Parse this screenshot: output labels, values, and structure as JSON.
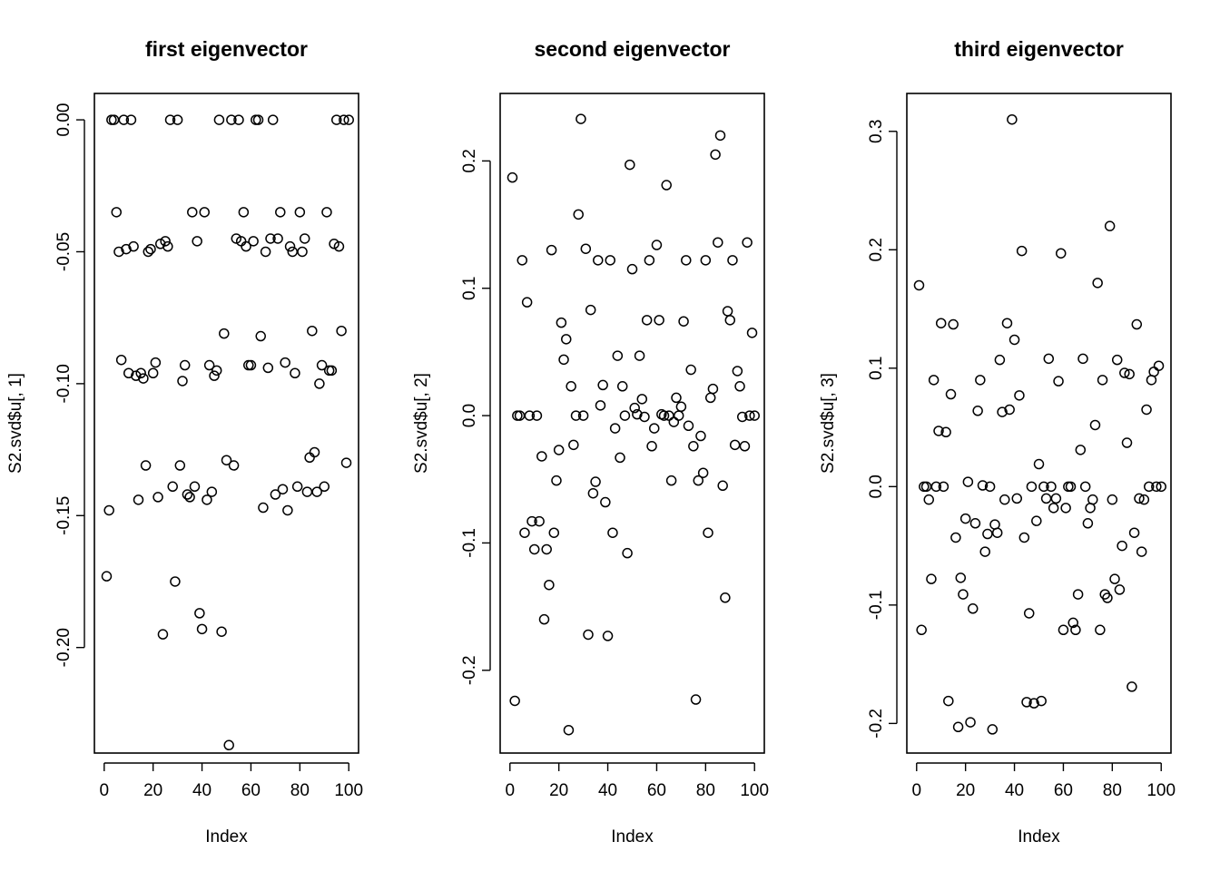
{
  "chart_data": [
    {
      "type": "scatter",
      "title": "first eigenvector",
      "xlabel": "Index",
      "ylabel": "S2.svd$u[, 1]",
      "xlim": [
        0,
        100
      ],
      "ylim": [
        -0.24,
        0.01
      ],
      "xticks": [
        0,
        20,
        40,
        60,
        80,
        100
      ],
      "xtick_labels": [
        "0",
        "20",
        "40",
        "60",
        "80",
        "100"
      ],
      "yticks": [
        -0.2,
        -0.15,
        -0.1,
        -0.05,
        0.0
      ],
      "ytick_labels": [
        "-0.20",
        "-0.15",
        "-0.10",
        "-0.05",
        "0.00"
      ],
      "x": [
        1,
        2,
        3,
        4,
        5,
        6,
        7,
        8,
        9,
        10,
        11,
        12,
        13,
        14,
        15,
        16,
        17,
        18,
        19,
        20,
        21,
        22,
        23,
        24,
        25,
        26,
        27,
        28,
        29,
        30,
        31,
        32,
        33,
        34,
        35,
        36,
        37,
        38,
        39,
        40,
        41,
        42,
        43,
        44,
        45,
        46,
        47,
        48,
        49,
        50,
        51,
        52,
        53,
        54,
        55,
        56,
        57,
        58,
        59,
        60,
        61,
        62,
        63,
        64,
        65,
        66,
        67,
        68,
        69,
        70,
        71,
        72,
        73,
        74,
        75,
        76,
        77,
        78,
        79,
        80,
        81,
        82,
        83,
        84,
        85,
        86,
        87,
        88,
        89,
        90,
        91,
        92,
        93,
        94,
        95,
        96,
        97,
        98,
        99,
        100
      ],
      "y": [
        -0.173,
        -0.148,
        0.0,
        0.0,
        -0.035,
        -0.05,
        -0.091,
        0.0,
        -0.049,
        -0.096,
        0.0,
        -0.048,
        -0.097,
        -0.144,
        -0.096,
        -0.098,
        -0.131,
        -0.05,
        -0.049,
        -0.096,
        -0.092,
        -0.143,
        -0.047,
        -0.195,
        -0.046,
        -0.048,
        0.0,
        -0.139,
        -0.175,
        0.0,
        -0.131,
        -0.099,
        -0.093,
        -0.142,
        -0.143,
        -0.035,
        -0.139,
        -0.046,
        -0.187,
        -0.193,
        -0.035,
        -0.144,
        -0.093,
        -0.141,
        -0.097,
        -0.095,
        0.0,
        -0.194,
        -0.081,
        -0.129,
        -0.237,
        0.0,
        -0.131,
        -0.045,
        0.0,
        -0.046,
        -0.035,
        -0.048,
        -0.093,
        -0.093,
        -0.046,
        0.0,
        0.0,
        -0.082,
        -0.147,
        -0.05,
        -0.094,
        -0.045,
        0.0,
        -0.142,
        -0.045,
        -0.035,
        -0.14,
        -0.092,
        -0.148,
        -0.048,
        -0.05,
        -0.096,
        -0.139,
        -0.035,
        -0.05,
        -0.045,
        -0.141,
        -0.128,
        -0.08,
        -0.126,
        -0.141,
        -0.1,
        -0.093,
        -0.139,
        -0.035,
        -0.095,
        -0.095,
        -0.047,
        0.0,
        -0.048,
        -0.08,
        0.0,
        -0.13,
        0.0
      ]
    },
    {
      "type": "scatter",
      "title": "second eigenvector",
      "xlabel": "Index",
      "ylabel": "S2.svd$u[, 2]",
      "xlim": [
        0,
        100
      ],
      "ylim": [
        -0.265,
        0.253
      ],
      "xticks": [
        0,
        20,
        40,
        60,
        80,
        100
      ],
      "xtick_labels": [
        "0",
        "20",
        "40",
        "60",
        "80",
        "100"
      ],
      "yticks": [
        -0.2,
        -0.1,
        0.0,
        0.1,
        0.2
      ],
      "ytick_labels": [
        "-0.2",
        "-0.1",
        "0.0",
        "0.1",
        "0.2"
      ],
      "x": [
        1,
        2,
        3,
        4,
        5,
        6,
        7,
        8,
        9,
        10,
        11,
        12,
        13,
        14,
        15,
        16,
        17,
        18,
        19,
        20,
        21,
        22,
        23,
        24,
        25,
        26,
        27,
        28,
        29,
        30,
        31,
        32,
        33,
        34,
        35,
        36,
        37,
        38,
        39,
        40,
        41,
        42,
        43,
        44,
        45,
        46,
        47,
        48,
        49,
        50,
        51,
        52,
        53,
        54,
        55,
        56,
        57,
        58,
        59,
        60,
        61,
        62,
        63,
        64,
        65,
        66,
        67,
        68,
        69,
        70,
        71,
        72,
        73,
        74,
        75,
        76,
        77,
        78,
        79,
        80,
        81,
        82,
        83,
        84,
        85,
        86,
        87,
        88,
        89,
        90,
        91,
        92,
        93,
        94,
        95,
        96,
        97,
        98,
        99,
        100
      ],
      "y": [
        0.187,
        -0.224,
        0.0,
        0.0,
        0.122,
        -0.092,
        0.089,
        0.0,
        -0.083,
        -0.105,
        0.0,
        -0.083,
        -0.032,
        -0.16,
        -0.105,
        -0.133,
        0.13,
        -0.092,
        -0.051,
        -0.027,
        0.073,
        0.044,
        0.06,
        -0.247,
        0.023,
        -0.023,
        0.0,
        0.158,
        0.233,
        0.0,
        0.131,
        -0.172,
        0.083,
        -0.061,
        -0.052,
        0.122,
        0.008,
        0.024,
        -0.068,
        -0.173,
        0.122,
        -0.092,
        -0.01,
        0.047,
        -0.033,
        0.023,
        0.0,
        -0.108,
        0.197,
        0.115,
        0.006,
        0.001,
        0.047,
        0.013,
        -0.001,
        0.075,
        0.122,
        -0.024,
        -0.01,
        0.134,
        0.075,
        0.001,
        0.0,
        0.181,
        0.0,
        -0.051,
        -0.005,
        0.014,
        0.0,
        0.007,
        0.074,
        0.122,
        -0.008,
        0.036,
        -0.024,
        -0.223,
        -0.051,
        -0.016,
        -0.045,
        0.122,
        -0.092,
        0.014,
        0.021,
        0.205,
        0.136,
        0.22,
        -0.055,
        -0.143,
        0.082,
        0.075,
        0.122,
        -0.023,
        0.035,
        0.023,
        -0.001,
        -0.024,
        0.136,
        0.0,
        0.065,
        0.0
      ]
    },
    {
      "type": "scatter",
      "title": "third eigenvector",
      "xlabel": "Index",
      "ylabel": "S2.svd$u[, 3]",
      "xlim": [
        0,
        100
      ],
      "ylim": [
        -0.225,
        0.332
      ],
      "xticks": [
        0,
        20,
        40,
        60,
        80,
        100
      ],
      "xtick_labels": [
        "0",
        "20",
        "40",
        "60",
        "80",
        "100"
      ],
      "yticks": [
        -0.2,
        -0.1,
        0.0,
        0.1,
        0.2,
        0.3
      ],
      "ytick_labels": [
        "-0.2",
        "-0.1",
        "0.0",
        "0.1",
        "0.2",
        "0.3"
      ],
      "x": [
        1,
        2,
        3,
        4,
        5,
        6,
        7,
        8,
        9,
        10,
        11,
        12,
        13,
        14,
        15,
        16,
        17,
        18,
        19,
        20,
        21,
        22,
        23,
        24,
        25,
        26,
        27,
        28,
        29,
        30,
        31,
        32,
        33,
        34,
        35,
        36,
        37,
        38,
        39,
        40,
        41,
        42,
        43,
        44,
        45,
        46,
        47,
        48,
        49,
        50,
        51,
        52,
        53,
        54,
        55,
        56,
        57,
        58,
        59,
        60,
        61,
        62,
        63,
        64,
        65,
        66,
        67,
        68,
        69,
        70,
        71,
        72,
        73,
        74,
        75,
        76,
        77,
        78,
        79,
        80,
        81,
        82,
        83,
        84,
        85,
        86,
        87,
        88,
        89,
        90,
        91,
        92,
        93,
        94,
        95,
        96,
        97,
        98,
        99,
        100
      ],
      "y": [
        0.17,
        -0.121,
        0.0,
        0.0,
        -0.011,
        -0.078,
        0.09,
        0.0,
        0.047,
        0.138,
        0.0,
        0.046,
        -0.181,
        0.078,
        0.137,
        -0.043,
        -0.203,
        -0.077,
        -0.091,
        -0.027,
        0.004,
        -0.199,
        -0.103,
        -0.031,
        0.064,
        0.09,
        0.001,
        -0.055,
        -0.04,
        0.0,
        -0.205,
        -0.032,
        -0.039,
        0.107,
        0.063,
        -0.011,
        0.138,
        0.065,
        0.31,
        0.124,
        -0.01,
        0.077,
        0.199,
        -0.043,
        -0.182,
        -0.107,
        0.0,
        -0.183,
        -0.029,
        0.019,
        -0.181,
        0.0,
        -0.01,
        0.108,
        0.0,
        -0.018,
        -0.01,
        0.089,
        0.197,
        -0.121,
        -0.018,
        0.0,
        0.0,
        -0.115,
        -0.121,
        -0.091,
        0.031,
        0.108,
        0.0,
        -0.031,
        -0.018,
        -0.011,
        0.052,
        0.172,
        -0.121,
        0.09,
        -0.091,
        -0.094,
        0.22,
        -0.011,
        -0.078,
        0.107,
        -0.087,
        -0.05,
        0.096,
        0.037,
        0.095,
        -0.169,
        -0.039,
        0.137,
        -0.01,
        -0.055,
        -0.011,
        0.065,
        0.0,
        0.09,
        0.097,
        0.0,
        0.102,
        0.0
      ]
    }
  ]
}
